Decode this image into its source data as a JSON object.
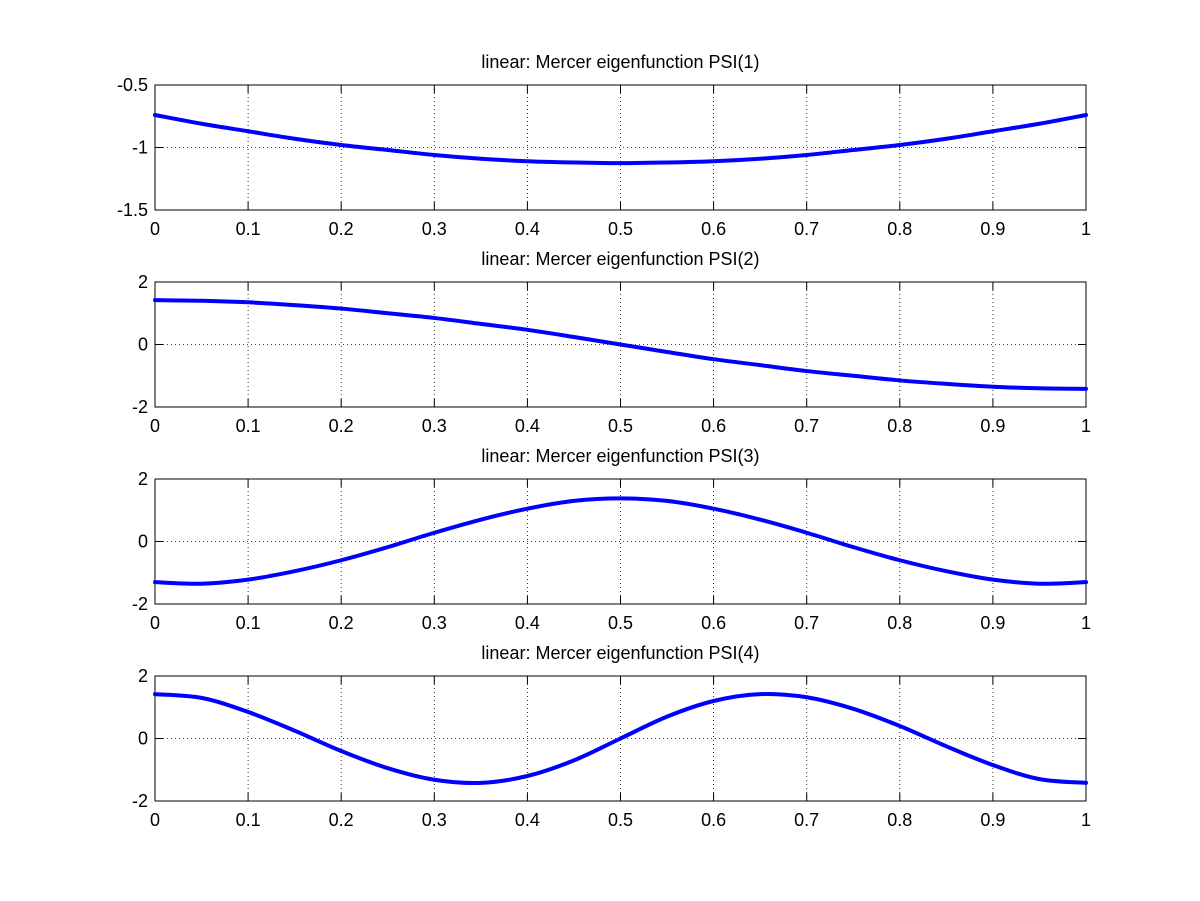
{
  "figure": {
    "background": "#ffffff",
    "line_color": "#0000ff"
  },
  "chart_data": [
    {
      "type": "line",
      "title": "linear: Mercer eigenfunction PSI(1)",
      "xlabel": "",
      "ylabel": "",
      "xlim": [
        0,
        1
      ],
      "ylim": [
        -1.5,
        -0.5
      ],
      "xticks": [
        "0",
        "0.1",
        "0.2",
        "0.3",
        "0.4",
        "0.5",
        "0.6",
        "0.7",
        "0.8",
        "0.9",
        "1"
      ],
      "yticks": [
        "-0.5",
        "-1",
        "-1.5"
      ],
      "yticks_values": [
        -0.5,
        -1,
        -1.5
      ],
      "grid": true,
      "x": [
        0,
        0.05,
        0.1,
        0.15,
        0.2,
        0.25,
        0.3,
        0.35,
        0.4,
        0.45,
        0.5,
        0.55,
        0.6,
        0.65,
        0.7,
        0.75,
        0.8,
        0.85,
        0.9,
        0.95,
        1
      ],
      "series": [
        {
          "values": [
            -0.74,
            -0.81,
            -0.87,
            -0.93,
            -0.98,
            -1.02,
            -1.06,
            -1.09,
            -1.11,
            -1.12,
            -1.125,
            -1.12,
            -1.11,
            -1.09,
            -1.06,
            -1.02,
            -0.98,
            -0.93,
            -0.87,
            -0.81,
            -0.74
          ]
        }
      ]
    },
    {
      "type": "line",
      "title": "linear: Mercer eigenfunction PSI(2)",
      "xlabel": "",
      "ylabel": "",
      "xlim": [
        0,
        1
      ],
      "ylim": [
        -2,
        2
      ],
      "xticks": [
        "0",
        "0.1",
        "0.2",
        "0.3",
        "0.4",
        "0.5",
        "0.6",
        "0.7",
        "0.8",
        "0.9",
        "1"
      ],
      "yticks": [
        "2",
        "0",
        "-2"
      ],
      "yticks_values": [
        2,
        0,
        -2
      ],
      "grid": true,
      "x": [
        0,
        0.05,
        0.1,
        0.15,
        0.2,
        0.25,
        0.3,
        0.35,
        0.4,
        0.45,
        0.5,
        0.55,
        0.6,
        0.65,
        0.7,
        0.75,
        0.8,
        0.85,
        0.9,
        0.95,
        1
      ],
      "series": [
        {
          "values": [
            1.42,
            1.4,
            1.35,
            1.26,
            1.15,
            1.0,
            0.85,
            0.66,
            0.47,
            0.24,
            0.0,
            -0.24,
            -0.47,
            -0.66,
            -0.85,
            -1.0,
            -1.15,
            -1.26,
            -1.35,
            -1.4,
            -1.42
          ]
        }
      ]
    },
    {
      "type": "line",
      "title": "linear: Mercer eigenfunction PSI(3)",
      "xlabel": "",
      "ylabel": "",
      "xlim": [
        0,
        1
      ],
      "ylim": [
        -2,
        2
      ],
      "xticks": [
        "0",
        "0.1",
        "0.2",
        "0.3",
        "0.4",
        "0.5",
        "0.6",
        "0.7",
        "0.8",
        "0.9",
        "1"
      ],
      "yticks": [
        "2",
        "0",
        "-2"
      ],
      "yticks_values": [
        2,
        0,
        -2
      ],
      "grid": true,
      "x": [
        0,
        0.05,
        0.1,
        0.15,
        0.2,
        0.25,
        0.3,
        0.35,
        0.4,
        0.45,
        0.5,
        0.55,
        0.6,
        0.65,
        0.7,
        0.75,
        0.8,
        0.85,
        0.9,
        0.95,
        1
      ],
      "series": [
        {
          "values": [
            -1.3,
            -1.35,
            -1.22,
            -0.95,
            -0.6,
            -0.18,
            0.28,
            0.7,
            1.05,
            1.3,
            1.38,
            1.3,
            1.05,
            0.7,
            0.28,
            -0.18,
            -0.6,
            -0.95,
            -1.22,
            -1.35,
            -1.3
          ]
        }
      ]
    },
    {
      "type": "line",
      "title": "linear: Mercer eigenfunction PSI(4)",
      "xlabel": "",
      "ylabel": "",
      "xlim": [
        0,
        1
      ],
      "ylim": [
        -2,
        2
      ],
      "xticks": [
        "0",
        "0.1",
        "0.2",
        "0.3",
        "0.4",
        "0.5",
        "0.6",
        "0.7",
        "0.8",
        "0.9",
        "1"
      ],
      "yticks": [
        "2",
        "0",
        "-2"
      ],
      "yticks_values": [
        2,
        0,
        -2
      ],
      "grid": true,
      "x": [
        0,
        0.05,
        0.1,
        0.15,
        0.2,
        0.25,
        0.3,
        0.35,
        0.4,
        0.45,
        0.5,
        0.55,
        0.6,
        0.65,
        0.7,
        0.75,
        0.8,
        0.85,
        0.9,
        0.95,
        1
      ],
      "series": [
        {
          "values": [
            1.42,
            1.3,
            0.85,
            0.25,
            -0.4,
            -0.95,
            -1.32,
            -1.42,
            -1.2,
            -0.7,
            0.0,
            0.7,
            1.2,
            1.42,
            1.32,
            0.95,
            0.4,
            -0.25,
            -0.85,
            -1.3,
            -1.42
          ]
        }
      ]
    }
  ]
}
